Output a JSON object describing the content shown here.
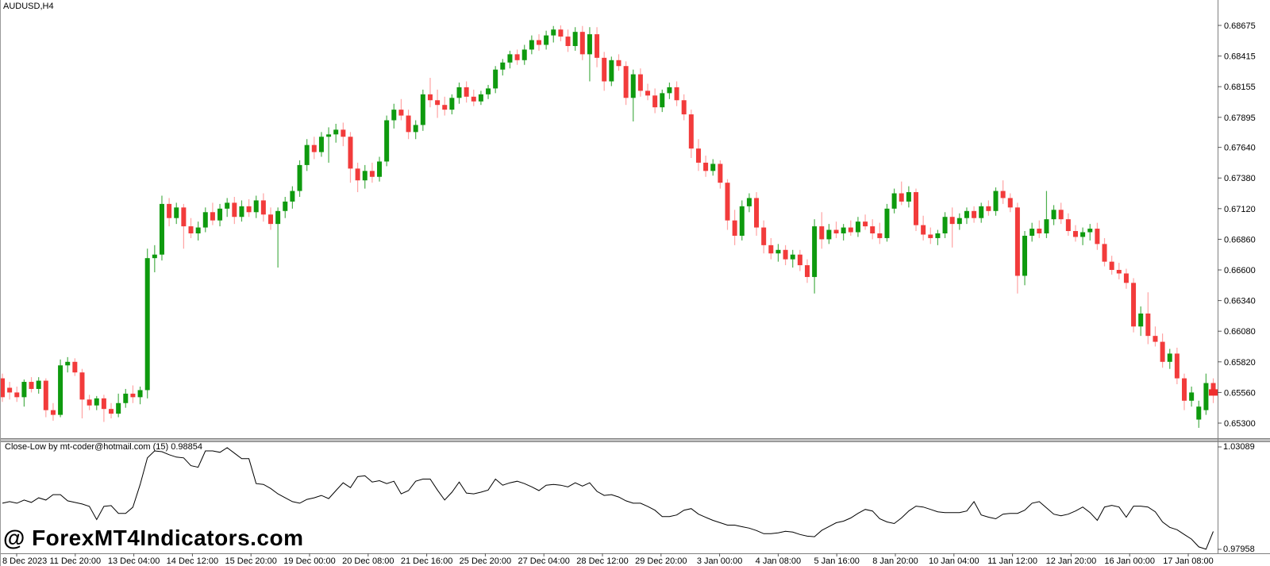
{
  "window": {
    "symbol_label": "AUDUSD,H4"
  },
  "watermark": "@ ForexMT4Indicators.com",
  "colors": {
    "background": "#ffffff",
    "bull_body": "#0e9a0e",
    "bull_wick": "#4daf4d",
    "bear_body": "#f23b3b",
    "bear_wick": "#ffa3a3",
    "indicator_line": "#000000",
    "axis_line": "#7f7f7f",
    "tick": "#555555",
    "separator": "#c0c0c0",
    "separator_edge": "#808080",
    "price_marker": "#ef2e2e",
    "text": "#000000"
  },
  "indicator": {
    "label": "Close-Low by mt-coder@hotmail.com (15) 0.98854",
    "name": "Close-Low",
    "period": "(15)",
    "current_value": "0.98854",
    "axis_top": "1.03089",
    "axis_bottom": "0.97958"
  },
  "main_chart": {
    "current_price": "0.65560"
  },
  "chart_data": {
    "type": "candlestick",
    "symbol": "AUDUSD",
    "timeframe": "H4",
    "title": "AUDUSD,H4",
    "grid": false,
    "legend_position": "none",
    "price_axis_range": [
      0.653,
      0.68675
    ],
    "y_tick_labels_price": [
      "0.68675",
      "0.68415",
      "0.68155",
      "0.67895",
      "0.67640",
      "0.67380",
      "0.67120",
      "0.66860",
      "0.66600",
      "0.66340",
      "0.66080",
      "0.65820",
      "0.65560",
      "0.65300"
    ],
    "x_tick_labels": [
      "8 Dec 2023",
      "11 Dec 20:00",
      "13 Dec 04:00",
      "14 Dec 12:00",
      "15 Dec 20:00",
      "19 Dec 00:00",
      "20 Dec 08:00",
      "21 Dec 16:00",
      "25 Dec 20:00",
      "27 Dec 04:00",
      "28 Dec 12:00",
      "29 Dec 20:00",
      "3 Jan 00:00",
      "4 Jan 08:00",
      "5 Jan 16:00",
      "8 Jan 20:00",
      "10 Jan 04:00",
      "11 Jan 12:00",
      "12 Jan 20:00",
      "16 Jan 00:00",
      "17 Jan 08:00"
    ],
    "ohlc": [
      [
        0.6568,
        0.6572,
        0.6548,
        0.6552
      ],
      [
        0.656,
        0.6565,
        0.655,
        0.6556
      ],
      [
        0.6556,
        0.6561,
        0.6548,
        0.6552
      ],
      [
        0.6552,
        0.6567,
        0.6544,
        0.6565
      ],
      [
        0.6565,
        0.6569,
        0.6556,
        0.6559
      ],
      [
        0.6559,
        0.6569,
        0.6555,
        0.6566
      ],
      [
        0.6566,
        0.6568,
        0.6535,
        0.6541
      ],
      [
        0.6541,
        0.6547,
        0.6532,
        0.6537
      ],
      [
        0.6537,
        0.6584,
        0.6535,
        0.6579
      ],
      [
        0.6579,
        0.6586,
        0.6573,
        0.6582
      ],
      [
        0.6582,
        0.6585,
        0.657,
        0.6573
      ],
      [
        0.6573,
        0.6576,
        0.6534,
        0.655
      ],
      [
        0.655,
        0.6554,
        0.6541,
        0.6545
      ],
      [
        0.6545,
        0.6553,
        0.6541,
        0.6551
      ],
      [
        0.6551,
        0.6554,
        0.6531,
        0.6542
      ],
      [
        0.6542,
        0.6547,
        0.6534,
        0.6538
      ],
      [
        0.6538,
        0.6555,
        0.6535,
        0.6547
      ],
      [
        0.6547,
        0.6559,
        0.6543,
        0.6555
      ],
      [
        0.6555,
        0.6562,
        0.6547,
        0.6552
      ],
      [
        0.6552,
        0.6561,
        0.6546,
        0.6558
      ],
      [
        0.6558,
        0.6678,
        0.6551,
        0.667
      ],
      [
        0.667,
        0.6681,
        0.6658,
        0.6673
      ],
      [
        0.6673,
        0.6723,
        0.6668,
        0.6716
      ],
      [
        0.6716,
        0.6721,
        0.6697,
        0.6704
      ],
      [
        0.6704,
        0.6717,
        0.6699,
        0.6713
      ],
      [
        0.6713,
        0.6716,
        0.6678,
        0.6697
      ],
      [
        0.6697,
        0.6704,
        0.6687,
        0.6691
      ],
      [
        0.6691,
        0.6701,
        0.6685,
        0.6696
      ],
      [
        0.6696,
        0.6713,
        0.6692,
        0.6709
      ],
      [
        0.6709,
        0.6717,
        0.6698,
        0.6702
      ],
      [
        0.6702,
        0.6716,
        0.6697,
        0.6712
      ],
      [
        0.6712,
        0.6721,
        0.6705,
        0.6717
      ],
      [
        0.6717,
        0.6722,
        0.6699,
        0.6705
      ],
      [
        0.6705,
        0.6719,
        0.6701,
        0.6714
      ],
      [
        0.6714,
        0.672,
        0.6705,
        0.6709
      ],
      [
        0.6709,
        0.6723,
        0.6704,
        0.6719
      ],
      [
        0.6719,
        0.6725,
        0.6701,
        0.6707
      ],
      [
        0.6707,
        0.6713,
        0.6694,
        0.6699
      ],
      [
        0.6699,
        0.6713,
        0.6662,
        0.671
      ],
      [
        0.671,
        0.6722,
        0.6704,
        0.6718
      ],
      [
        0.6718,
        0.6731,
        0.6712,
        0.6727
      ],
      [
        0.6727,
        0.6753,
        0.6722,
        0.6749
      ],
      [
        0.6749,
        0.6771,
        0.6744,
        0.6766
      ],
      [
        0.6766,
        0.6773,
        0.6754,
        0.676
      ],
      [
        0.676,
        0.6777,
        0.6756,
        0.6773
      ],
      [
        0.6773,
        0.6781,
        0.6751,
        0.6775
      ],
      [
        0.6775,
        0.6784,
        0.6768,
        0.6779
      ],
      [
        0.6779,
        0.6785,
        0.6765,
        0.6773
      ],
      [
        0.6773,
        0.6777,
        0.6734,
        0.6746
      ],
      [
        0.6746,
        0.6751,
        0.6726,
        0.6736
      ],
      [
        0.6736,
        0.6749,
        0.6729,
        0.6744
      ],
      [
        0.6744,
        0.6751,
        0.6734,
        0.6739
      ],
      [
        0.6739,
        0.6756,
        0.6735,
        0.6752
      ],
      [
        0.6752,
        0.6791,
        0.6748,
        0.6787
      ],
      [
        0.6787,
        0.6801,
        0.678,
        0.6796
      ],
      [
        0.6796,
        0.6805,
        0.6787,
        0.6791
      ],
      [
        0.6791,
        0.6796,
        0.6771,
        0.6777
      ],
      [
        0.6777,
        0.6787,
        0.6771,
        0.6783
      ],
      [
        0.6783,
        0.6813,
        0.6778,
        0.6809
      ],
      [
        0.6809,
        0.6823,
        0.6798,
        0.6804
      ],
      [
        0.6804,
        0.6813,
        0.6789,
        0.68
      ],
      [
        0.68,
        0.6807,
        0.6791,
        0.6796
      ],
      [
        0.6796,
        0.6809,
        0.6792,
        0.6806
      ],
      [
        0.6806,
        0.6819,
        0.6801,
        0.6815
      ],
      [
        0.6815,
        0.682,
        0.6802,
        0.6807
      ],
      [
        0.6807,
        0.6813,
        0.6799,
        0.6803
      ],
      [
        0.6803,
        0.6812,
        0.68,
        0.6809
      ],
      [
        0.6809,
        0.6817,
        0.6805,
        0.6814
      ],
      [
        0.6814,
        0.6833,
        0.681,
        0.683
      ],
      [
        0.683,
        0.6839,
        0.6825,
        0.6836
      ],
      [
        0.6836,
        0.6846,
        0.6831,
        0.6843
      ],
      [
        0.6843,
        0.6847,
        0.6834,
        0.6838
      ],
      [
        0.6838,
        0.6851,
        0.6834,
        0.6847
      ],
      [
        0.6847,
        0.6859,
        0.6843,
        0.6855
      ],
      [
        0.6855,
        0.686,
        0.6846,
        0.6851
      ],
      [
        0.6851,
        0.6863,
        0.6847,
        0.6859
      ],
      [
        0.6859,
        0.6867,
        0.6853,
        0.6864
      ],
      [
        0.6864,
        0.68675,
        0.6854,
        0.6858
      ],
      [
        0.6858,
        0.6864,
        0.6845,
        0.685
      ],
      [
        0.685,
        0.6866,
        0.6846,
        0.6862
      ],
      [
        0.6862,
        0.6867,
        0.6838,
        0.6843
      ],
      [
        0.6843,
        0.6866,
        0.682,
        0.686
      ],
      [
        0.686,
        0.6866,
        0.6832,
        0.684
      ],
      [
        0.684,
        0.6845,
        0.6812,
        0.682
      ],
      [
        0.682,
        0.6841,
        0.6816,
        0.6838
      ],
      [
        0.6838,
        0.6843,
        0.6829,
        0.6833
      ],
      [
        0.6833,
        0.6837,
        0.68,
        0.6806
      ],
      [
        0.6806,
        0.683,
        0.6786,
        0.6826
      ],
      [
        0.6826,
        0.6831,
        0.6807,
        0.6812
      ],
      [
        0.6812,
        0.6818,
        0.6804,
        0.6808
      ],
      [
        0.6808,
        0.6814,
        0.6793,
        0.6798
      ],
      [
        0.6798,
        0.6813,
        0.6794,
        0.681
      ],
      [
        0.681,
        0.6819,
        0.6805,
        0.6815
      ],
      [
        0.6815,
        0.682,
        0.6799,
        0.6804
      ],
      [
        0.6804,
        0.6809,
        0.6787,
        0.6792
      ],
      [
        0.6792,
        0.6796,
        0.6755,
        0.6763
      ],
      [
        0.6763,
        0.6771,
        0.6744,
        0.6751
      ],
      [
        0.6751,
        0.6757,
        0.6739,
        0.6744
      ],
      [
        0.6744,
        0.6754,
        0.674,
        0.675
      ],
      [
        0.675,
        0.6753,
        0.6729,
        0.6734
      ],
      [
        0.6734,
        0.6737,
        0.6694,
        0.6702
      ],
      [
        0.6702,
        0.6711,
        0.6681,
        0.6689
      ],
      [
        0.6689,
        0.6719,
        0.6685,
        0.6714
      ],
      [
        0.6714,
        0.6725,
        0.6709,
        0.6721
      ],
      [
        0.6721,
        0.6726,
        0.6689,
        0.6696
      ],
      [
        0.6696,
        0.6702,
        0.6674,
        0.6681
      ],
      [
        0.6681,
        0.6687,
        0.6669,
        0.6674
      ],
      [
        0.6674,
        0.6682,
        0.6667,
        0.6677
      ],
      [
        0.6677,
        0.6681,
        0.6664,
        0.6669
      ],
      [
        0.6669,
        0.6677,
        0.6662,
        0.6673
      ],
      [
        0.6673,
        0.6677,
        0.6659,
        0.6664
      ],
      [
        0.6664,
        0.6669,
        0.6649,
        0.6654
      ],
      [
        0.6654,
        0.6703,
        0.664,
        0.6697
      ],
      [
        0.6697,
        0.6709,
        0.6678,
        0.6686
      ],
      [
        0.6686,
        0.6699,
        0.6682,
        0.6694
      ],
      [
        0.6694,
        0.6701,
        0.6687,
        0.6691
      ],
      [
        0.6691,
        0.6699,
        0.6685,
        0.6696
      ],
      [
        0.6696,
        0.6702,
        0.6689,
        0.6692
      ],
      [
        0.6692,
        0.6705,
        0.6688,
        0.6701
      ],
      [
        0.6701,
        0.6707,
        0.6694,
        0.6697
      ],
      [
        0.6697,
        0.6703,
        0.6686,
        0.6691
      ],
      [
        0.6691,
        0.67,
        0.6682,
        0.6687
      ],
      [
        0.6687,
        0.6716,
        0.6684,
        0.6712
      ],
      [
        0.6712,
        0.6729,
        0.6708,
        0.6725
      ],
      [
        0.6725,
        0.6735,
        0.6715,
        0.6718
      ],
      [
        0.6718,
        0.6731,
        0.6713,
        0.6726
      ],
      [
        0.6726,
        0.6729,
        0.6693,
        0.6698
      ],
      [
        0.6698,
        0.6706,
        0.6685,
        0.669
      ],
      [
        0.669,
        0.6696,
        0.6682,
        0.6687
      ],
      [
        0.6687,
        0.6694,
        0.6681,
        0.6691
      ],
      [
        0.6691,
        0.6709,
        0.6687,
        0.6705
      ],
      [
        0.6705,
        0.6713,
        0.6679,
        0.6699
      ],
      [
        0.6699,
        0.6708,
        0.6694,
        0.6704
      ],
      [
        0.6704,
        0.6713,
        0.6699,
        0.671
      ],
      [
        0.671,
        0.6714,
        0.67,
        0.6704
      ],
      [
        0.6704,
        0.6717,
        0.67,
        0.6714
      ],
      [
        0.6714,
        0.6719,
        0.6706,
        0.671
      ],
      [
        0.671,
        0.673,
        0.6706,
        0.6727
      ],
      [
        0.6727,
        0.6736,
        0.6716,
        0.6721
      ],
      [
        0.6721,
        0.6725,
        0.6709,
        0.6713
      ],
      [
        0.6713,
        0.6717,
        0.664,
        0.6655
      ],
      [
        0.6655,
        0.6693,
        0.6647,
        0.6689
      ],
      [
        0.6689,
        0.67,
        0.6684,
        0.6695
      ],
      [
        0.6695,
        0.6702,
        0.6687,
        0.6691
      ],
      [
        0.6691,
        0.6727,
        0.6687,
        0.6703
      ],
      [
        0.6703,
        0.6715,
        0.6698,
        0.6711
      ],
      [
        0.6711,
        0.6717,
        0.6699,
        0.6703
      ],
      [
        0.6703,
        0.6708,
        0.6689,
        0.6693
      ],
      [
        0.6693,
        0.6698,
        0.6684,
        0.6688
      ],
      [
        0.6688,
        0.6696,
        0.6681,
        0.6692
      ],
      [
        0.6692,
        0.6699,
        0.6685,
        0.6695
      ],
      [
        0.6695,
        0.67,
        0.6677,
        0.6682
      ],
      [
        0.6682,
        0.6687,
        0.6663,
        0.6667
      ],
      [
        0.6667,
        0.6672,
        0.6656,
        0.666
      ],
      [
        0.666,
        0.6666,
        0.6652,
        0.6657
      ],
      [
        0.6657,
        0.6661,
        0.6644,
        0.6649
      ],
      [
        0.6649,
        0.6653,
        0.6607,
        0.6612
      ],
      [
        0.6612,
        0.6629,
        0.6604,
        0.6623
      ],
      [
        0.6623,
        0.6641,
        0.6597,
        0.6604
      ],
      [
        0.6604,
        0.6612,
        0.6595,
        0.6599
      ],
      [
        0.6599,
        0.6606,
        0.6577,
        0.6582
      ],
      [
        0.6582,
        0.6593,
        0.6576,
        0.6589
      ],
      [
        0.6589,
        0.6594,
        0.6563,
        0.6568
      ],
      [
        0.6568,
        0.6572,
        0.6541,
        0.6549
      ],
      [
        0.6549,
        0.6561,
        0.6544,
        0.6556
      ],
      [
        0.6533,
        0.6549,
        0.6526,
        0.6544
      ],
      [
        0.6541,
        0.6572,
        0.6537,
        0.6564
      ],
      [
        0.6564,
        0.6568,
        0.6547,
        0.6556
      ]
    ],
    "indicator": {
      "name": "Close-Low",
      "range": [
        0.97958,
        1.03089
      ],
      "values": [
        1.0027,
        1.0035,
        1.0027,
        1.0043,
        1.0031,
        1.0054,
        1.0043,
        1.007,
        1.007,
        1.0039,
        1.0031,
        1.0023,
        1.0011,
        0.9945,
        1.0011,
        1.0015,
        0.9976,
        0.9976,
        1.0007,
        1.0121,
        1.0254,
        1.0289,
        1.0285,
        1.027,
        1.0258,
        1.0254,
        1.0215,
        1.0207,
        1.0289,
        1.0289,
        1.0282,
        1.0305,
        1.0278,
        1.025,
        1.025,
        1.0125,
        1.0121,
        1.0101,
        1.0074,
        1.0054,
        1.0035,
        1.0027,
        1.0046,
        1.0054,
        1.0066,
        1.005,
        1.009,
        1.0129,
        1.0105,
        1.016,
        1.0164,
        1.0133,
        1.014,
        1.0125,
        1.0137,
        1.0074,
        1.009,
        1.0137,
        1.0148,
        1.0148,
        1.0093,
        1.0043,
        1.0082,
        1.0133,
        1.0078,
        1.0074,
        1.0082,
        1.0093,
        1.0148,
        1.0117,
        1.0129,
        1.0137,
        1.0125,
        1.0109,
        1.009,
        1.0117,
        1.0121,
        1.0117,
        1.0109,
        1.0129,
        1.0113,
        1.0129,
        1.0086,
        1.0066,
        1.007,
        1.0058,
        1.0039,
        1.0027,
        1.0027,
        1.0011,
        0.9992,
        0.996,
        0.996,
        0.9968,
        0.9992,
        1.0,
        0.9972,
        0.9956,
        0.9941,
        0.9929,
        0.9917,
        0.9917,
        0.9909,
        0.9902,
        0.989,
        0.9874,
        0.9874,
        0.9878,
        0.9886,
        0.9882,
        0.987,
        0.9862,
        0.9859,
        0.9891,
        0.991,
        0.9929,
        0.9937,
        0.9953,
        0.9976,
        0.9996,
        0.9988,
        0.9949,
        0.9933,
        0.9925,
        0.9953,
        0.9988,
        1.0012,
        1.0008,
        0.9996,
        0.9984,
        0.998,
        0.998,
        0.998,
        0.9988,
        1.0035,
        0.9968,
        0.9957,
        0.9949,
        0.9972,
        0.9976,
        0.9976,
        0.9992,
        1.0027,
        1.0035,
        1.0004,
        0.9972,
        0.9964,
        0.9972,
        0.9988,
        1.0008,
        0.998,
        0.9941,
        1.0008,
        1.0016,
        1.0008,
        0.9957,
        1.0012,
        1.0012,
        1.0008,
        0.9984,
        0.9933,
        0.9906,
        0.9894,
        0.987,
        0.9847,
        0.9808,
        0.9796,
        0.98854
      ]
    }
  }
}
